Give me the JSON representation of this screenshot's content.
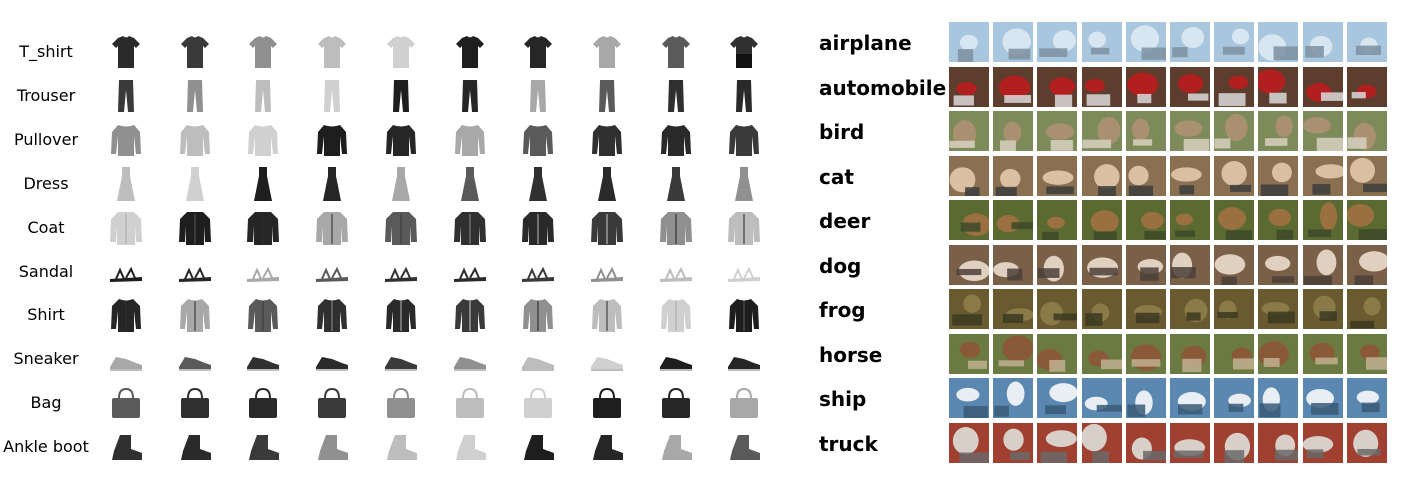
{
  "fashion": {
    "classes": [
      "T_shirt",
      "Trouser",
      "Pullover",
      "Dress",
      "Coat",
      "Sandal",
      "Shirt",
      "Sneaker",
      "Bag",
      "Ankle boot"
    ],
    "icons": [
      "tshirt-icon",
      "trouser-icon",
      "pullover-icon",
      "dress-icon",
      "coat-icon",
      "sandal-icon",
      "shirt-icon",
      "sneaker-icon",
      "bag-icon",
      "ankle-boot-icon"
    ],
    "samples_per_class": 10
  },
  "cifar": {
    "classes": [
      "airplane",
      "automobile",
      "bird",
      "cat",
      "deer",
      "dog",
      "frog",
      "horse",
      "ship",
      "truck"
    ],
    "samples_per_class": 10,
    "palettes": [
      [
        "#a9c6df",
        "#d7e6f0",
        "#7c8fa0"
      ],
      [
        "#5c3d2e",
        "#b21f1f",
        "#d9d9d9"
      ],
      [
        "#7d8a5a",
        "#a89070",
        "#d8d0c0"
      ],
      [
        "#8a7050",
        "#d8c0a0",
        "#3c3c3c"
      ],
      [
        "#5a6a30",
        "#9a7040",
        "#3c4a28"
      ],
      [
        "#7a6048",
        "#e0d0c0",
        "#4a4038"
      ],
      [
        "#6a5a30",
        "#8a7a48",
        "#3a3a22"
      ],
      [
        "#6a7a40",
        "#8a5a38",
        "#c0b090"
      ],
      [
        "#5a88b0",
        "#e8eef4",
        "#3a5a78"
      ],
      [
        "#a04030",
        "#d8d0c8",
        "#6a6a6a"
      ]
    ]
  }
}
